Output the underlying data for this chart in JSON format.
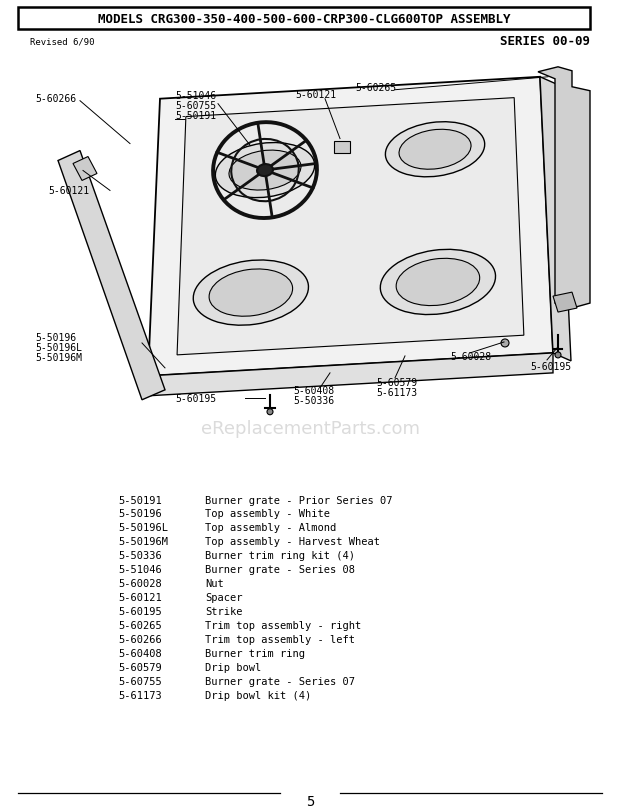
{
  "title": "MODELS CRG300-350-400-500-600-CRP300-CLG600TOP ASSEMBLY",
  "series": "SERIES 00-09",
  "revised": "Revised 6/90",
  "watermark": "eReplacementParts.com",
  "page_number": "5",
  "parts": [
    [
      "5-50191",
      "Burner grate - Prior Series 07"
    ],
    [
      "5-50196",
      "Top assembly - White"
    ],
    [
      "5-50196L",
      "Top assembly - Almond"
    ],
    [
      "5-50196M",
      "Top assembly - Harvest Wheat"
    ],
    [
      "5-50336",
      "Burner trim ring kit (4)"
    ],
    [
      "5-51046",
      "Burner grate - Series 08"
    ],
    [
      "5-60028",
      "Nut"
    ],
    [
      "5-60121",
      "Spacer"
    ],
    [
      "5-60195",
      "Strike"
    ],
    [
      "5-60265",
      "Trim top assembly - right"
    ],
    [
      "5-60266",
      "Trim top assembly - left"
    ],
    [
      "5-60408",
      "Burner trim ring"
    ],
    [
      "5-60579",
      "Drip bowl"
    ],
    [
      "5-60755",
      "Burner grate - Series 07"
    ],
    [
      "5-61173",
      "Drip bowl kit (4)"
    ]
  ],
  "bg_color": "#ffffff",
  "line_color": "#000000",
  "text_color": "#000000",
  "label_fontsize": 7.0,
  "parts_fontsize": 7.5,
  "title_fontsize": 9.0,
  "watermark_color": "#cccccc"
}
